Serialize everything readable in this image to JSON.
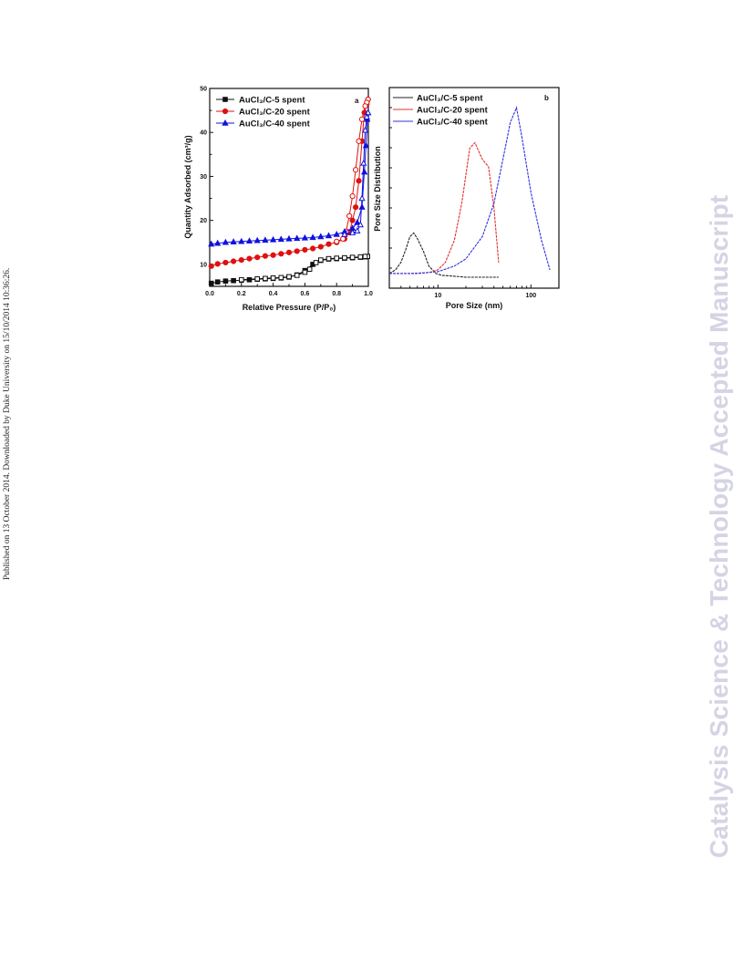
{
  "side_note": "Published on 13 October 2014. Downloaded by Duke University on 15/10/2014 10:36:26.",
  "watermark": "Catalysis Science & Technology Accepted Manuscript",
  "chart_data": [
    {
      "type": "line",
      "panel_label": "a",
      "xlabel": "Relative Pressure (P/P₀)",
      "ylabel": "Quantity Adsorbed (cm³/g)",
      "xlim": [
        0.0,
        1.0
      ],
      "ylim": [
        5,
        50
      ],
      "xticks": [
        "0.0",
        "0.2",
        "0.4",
        "0.6",
        "0.8",
        "1.0"
      ],
      "yticks": [
        "10",
        "20",
        "30",
        "40",
        "50"
      ],
      "legend_position": "top-left",
      "series": [
        {
          "name": "AuCl₃/C-5 spent",
          "color": "#111111",
          "marker": "square",
          "adsorption": [
            [
              0.01,
              5.7
            ],
            [
              0.05,
              6.0
            ],
            [
              0.1,
              6.2
            ],
            [
              0.15,
              6.3
            ],
            [
              0.2,
              6.4
            ],
            [
              0.25,
              6.5
            ],
            [
              0.3,
              6.6
            ],
            [
              0.35,
              6.7
            ],
            [
              0.4,
              6.8
            ],
            [
              0.45,
              6.9
            ],
            [
              0.5,
              7.1
            ],
            [
              0.55,
              7.6
            ],
            [
              0.6,
              8.6
            ],
            [
              0.65,
              10.0
            ],
            [
              0.7,
              10.9
            ],
            [
              0.75,
              11.2
            ],
            [
              0.8,
              11.3
            ],
            [
              0.85,
              11.4
            ],
            [
              0.9,
              11.5
            ],
            [
              0.95,
              11.6
            ],
            [
              0.98,
              11.7
            ],
            [
              0.995,
              11.8
            ]
          ],
          "desorption": [
            [
              0.995,
              11.8
            ],
            [
              0.98,
              11.8
            ],
            [
              0.95,
              11.7
            ],
            [
              0.9,
              11.6
            ],
            [
              0.85,
              11.5
            ],
            [
              0.8,
              11.4
            ],
            [
              0.75,
              11.3
            ],
            [
              0.7,
              11.0
            ],
            [
              0.67,
              10.4
            ],
            [
              0.63,
              8.9
            ],
            [
              0.6,
              8.2
            ],
            [
              0.55,
              7.5
            ],
            [
              0.5,
              7.2
            ],
            [
              0.45,
              7.0
            ],
            [
              0.4,
              6.9
            ],
            [
              0.35,
              6.8
            ],
            [
              0.3,
              6.7
            ],
            [
              0.2,
              6.5
            ]
          ]
        },
        {
          "name": "AuCl₃/C-20 spent",
          "color": "#e01010",
          "marker": "circle",
          "adsorption": [
            [
              0.01,
              9.6
            ],
            [
              0.05,
              10.1
            ],
            [
              0.1,
              10.4
            ],
            [
              0.15,
              10.7
            ],
            [
              0.2,
              11.0
            ],
            [
              0.25,
              11.3
            ],
            [
              0.3,
              11.6
            ],
            [
              0.35,
              11.9
            ],
            [
              0.4,
              12.1
            ],
            [
              0.45,
              12.4
            ],
            [
              0.5,
              12.7
            ],
            [
              0.55,
              13.0
            ],
            [
              0.6,
              13.3
            ],
            [
              0.65,
              13.6
            ],
            [
              0.7,
              14.0
            ],
            [
              0.75,
              14.6
            ],
            [
              0.8,
              15.0
            ],
            [
              0.85,
              15.8
            ],
            [
              0.88,
              17.2
            ],
            [
              0.9,
              20.0
            ],
            [
              0.92,
              23.0
            ],
            [
              0.94,
              29.0
            ],
            [
              0.96,
              38.0
            ],
            [
              0.975,
              44.5
            ],
            [
              0.99,
              46.5
            ],
            [
              0.998,
              47.5
            ]
          ],
          "desorption": [
            [
              0.998,
              47.5
            ],
            [
              0.99,
              46.8
            ],
            [
              0.98,
              46.0
            ],
            [
              0.96,
              43.0
            ],
            [
              0.94,
              38.0
            ],
            [
              0.92,
              31.5
            ],
            [
              0.9,
              25.5
            ],
            [
              0.88,
              21.0
            ],
            [
              0.86,
              17.5
            ],
            [
              0.84,
              15.8
            ],
            [
              0.8,
              15.2
            ]
          ]
        },
        {
          "name": "AuCl₃/C-40 spent",
          "color": "#1010e0",
          "marker": "triangle",
          "adsorption": [
            [
              0.01,
              14.6
            ],
            [
              0.05,
              14.8
            ],
            [
              0.1,
              15.0
            ],
            [
              0.15,
              15.1
            ],
            [
              0.2,
              15.2
            ],
            [
              0.25,
              15.3
            ],
            [
              0.3,
              15.4
            ],
            [
              0.35,
              15.5
            ],
            [
              0.4,
              15.6
            ],
            [
              0.45,
              15.7
            ],
            [
              0.5,
              15.8
            ],
            [
              0.55,
              15.9
            ],
            [
              0.6,
              16.0
            ],
            [
              0.65,
              16.1
            ],
            [
              0.7,
              16.3
            ],
            [
              0.75,
              16.5
            ],
            [
              0.8,
              16.8
            ],
            [
              0.85,
              17.4
            ],
            [
              0.9,
              18.2
            ],
            [
              0.93,
              19.5
            ],
            [
              0.96,
              23.0
            ],
            [
              0.975,
              31.0
            ],
            [
              0.985,
              37.0
            ],
            [
              0.993,
              43.0
            ],
            [
              0.998,
              44.5
            ]
          ],
          "desorption": [
            [
              0.998,
              44.5
            ],
            [
              0.99,
              43.5
            ],
            [
              0.98,
              40.5
            ],
            [
              0.97,
              33.0
            ],
            [
              0.96,
              25.0
            ],
            [
              0.95,
              19.0
            ],
            [
              0.93,
              17.6
            ],
            [
              0.9,
              17.2
            ],
            [
              0.85,
              16.8
            ]
          ]
        }
      ]
    },
    {
      "type": "line",
      "panel_label": "b",
      "xlabel": "Pore Size (nm)",
      "ylabel": "Pore Size Distribution",
      "xscale": "log",
      "xlim": [
        3,
        200
      ],
      "ylim": [
        0,
        1
      ],
      "xticks": [
        "10",
        "100"
      ],
      "legend_position": "top-left",
      "series": [
        {
          "name": "AuCl₃/C-5 spent",
          "color": "#222222",
          "x": [
            3,
            3.5,
            4.0,
            4.5,
            5.0,
            5.5,
            6.0,
            7.0,
            8.0,
            9.5,
            11,
            15,
            20,
            30,
            45
          ],
          "y": [
            0.04,
            0.06,
            0.1,
            0.17,
            0.24,
            0.26,
            0.23,
            0.16,
            0.08,
            0.04,
            0.03,
            0.025,
            0.02,
            0.02,
            0.02
          ]
        },
        {
          "name": "AuCl₃/C-20 spent",
          "color": "#e03030",
          "x": [
            3,
            5,
            8,
            10,
            12,
            15,
            18,
            22,
            25,
            30,
            35,
            40,
            45
          ],
          "y": [
            0.04,
            0.04,
            0.045,
            0.06,
            0.1,
            0.22,
            0.42,
            0.72,
            0.75,
            0.66,
            0.62,
            0.4,
            0.1
          ]
        },
        {
          "name": "AuCl₃/C-40 spent",
          "color": "#3030e0",
          "x": [
            3,
            6,
            10,
            15,
            20,
            30,
            40,
            50,
            60,
            70,
            80,
            100,
            130,
            160
          ],
          "y": [
            0.04,
            0.04,
            0.05,
            0.08,
            0.12,
            0.24,
            0.42,
            0.66,
            0.86,
            0.94,
            0.78,
            0.48,
            0.22,
            0.06
          ]
        }
      ]
    }
  ]
}
